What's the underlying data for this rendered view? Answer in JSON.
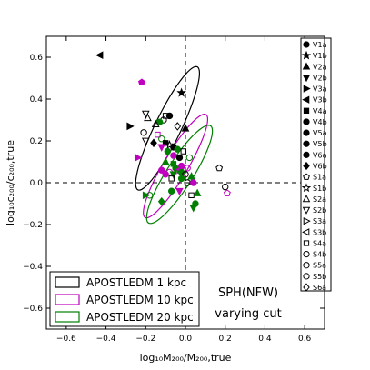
{
  "chart_data": {
    "type": "scatter",
    "xlabel": "log₁₀M₂₀₀/M₂₀₀,true",
    "ylabel": "log₁₀c₂₀₀/c₂₀₀,true",
    "xlim": [
      -0.7,
      0.7
    ],
    "ylim": [
      -0.7,
      0.7
    ],
    "xticks": [
      -0.6,
      -0.4,
      -0.2,
      0.0,
      0.2,
      0.4,
      0.6
    ],
    "yticks": [
      -0.6,
      -0.4,
      -0.2,
      0.0,
      0.2,
      0.4,
      0.6
    ],
    "xtick_labels": [
      "−0.6",
      "−0.4",
      "−0.2",
      "0.0",
      "0.2",
      "0.4",
      "0.6"
    ],
    "ytick_labels": [
      "−0.6",
      "−0.4",
      "−0.2",
      "0.0",
      "0.2",
      "0.4",
      "0.6"
    ],
    "grid": false,
    "reference_lines": {
      "x": 0.0,
      "y": 0.0,
      "style": "dashed"
    },
    "annotation": {
      "line1": "SPH(NFW)",
      "line2": "varying cut"
    },
    "colors": {
      "1kpc": "#000000",
      "10kpc": "#bf00bf",
      "20kpc": "#007f00"
    },
    "ellipses": [
      {
        "name": "APOSTLEDM 1 kpc",
        "color_key": "1kpc",
        "center": [
          -0.09,
          0.26
        ],
        "semi_major": 0.33,
        "semi_minor": 0.065,
        "angle_deg": 63
      },
      {
        "name": "APOSTLEDM 10 kpc",
        "color_key": "10kpc",
        "center": [
          -0.05,
          0.08
        ],
        "semi_major": 0.29,
        "semi_minor": 0.06,
        "angle_deg": 58
      },
      {
        "name": "APOSTLEDM 20 kpc",
        "color_key": "20kpc",
        "center": [
          -0.03,
          0.04
        ],
        "semi_major": 0.28,
        "semi_minor": 0.065,
        "angle_deg": 56
      }
    ],
    "legend_boxes": {
      "items": [
        "APOSTLEDM 1 kpc",
        "APOSTLEDM 10 kpc",
        "APOSTLEDM 20 kpc"
      ],
      "placement": "lower-left"
    },
    "marker_legend": {
      "placement": "right",
      "items": [
        {
          "label": "V1a",
          "marker": "circle",
          "filled": true
        },
        {
          "label": "V1b",
          "marker": "star",
          "filled": true
        },
        {
          "label": "V2a",
          "marker": "triangle-up",
          "filled": true
        },
        {
          "label": "V2b",
          "marker": "triangle-down",
          "filled": true
        },
        {
          "label": "V3a",
          "marker": "triangle-right",
          "filled": true
        },
        {
          "label": "V3b",
          "marker": "triangle-left",
          "filled": true
        },
        {
          "label": "V4a",
          "marker": "square",
          "filled": true
        },
        {
          "label": "V4b",
          "marker": "circle",
          "filled": true
        },
        {
          "label": "V5a",
          "marker": "circle",
          "filled": true
        },
        {
          "label": "V5b",
          "marker": "circle",
          "filled": true
        },
        {
          "label": "V6a",
          "marker": "circle",
          "filled": true
        },
        {
          "label": "V6b",
          "marker": "diamond",
          "filled": true
        },
        {
          "label": "S1a",
          "marker": "pentagon",
          "filled": false
        },
        {
          "label": "S1b",
          "marker": "star",
          "filled": false
        },
        {
          "label": "S2a",
          "marker": "triangle-up",
          "filled": false
        },
        {
          "label": "S2b",
          "marker": "triangle-down",
          "filled": false
        },
        {
          "label": "S3a",
          "marker": "triangle-right",
          "filled": false
        },
        {
          "label": "S3b",
          "marker": "triangle-left",
          "filled": false
        },
        {
          "label": "S4a",
          "marker": "square",
          "filled": false
        },
        {
          "label": "S4b",
          "marker": "circle",
          "filled": false
        },
        {
          "label": "S5a",
          "marker": "circle",
          "filled": false
        },
        {
          "label": "S5b",
          "marker": "circle",
          "filled": false
        },
        {
          "label": "S6a",
          "marker": "diamond",
          "filled": false
        }
      ]
    },
    "points": [
      {
        "x": -0.43,
        "y": 0.61,
        "marker": "triangle-left",
        "filled": true,
        "color_key": "1kpc"
      },
      {
        "x": -0.02,
        "y": 0.43,
        "marker": "star",
        "filled": true,
        "color_key": "1kpc"
      },
      {
        "x": -0.22,
        "y": 0.48,
        "marker": "pentagon",
        "filled": true,
        "color_key": "10kpc"
      },
      {
        "x": -0.2,
        "y": 0.33,
        "marker": "triangle-down",
        "filled": false,
        "color_key": "1kpc"
      },
      {
        "x": -0.19,
        "y": 0.31,
        "marker": "triangle-up",
        "filled": false,
        "color_key": "1kpc"
      },
      {
        "x": -0.1,
        "y": 0.32,
        "marker": "square",
        "filled": false,
        "color_key": "1kpc"
      },
      {
        "x": -0.11,
        "y": 0.3,
        "marker": "circle",
        "filled": false,
        "color_key": "1kpc"
      },
      {
        "x": -0.08,
        "y": 0.32,
        "marker": "circle",
        "filled": true,
        "color_key": "1kpc"
      },
      {
        "x": -0.13,
        "y": 0.29,
        "marker": "circle",
        "filled": true,
        "color_key": "20kpc"
      },
      {
        "x": -0.15,
        "y": 0.28,
        "marker": "triangle-up",
        "filled": false,
        "color_key": "1kpc"
      },
      {
        "x": 0.0,
        "y": 0.26,
        "marker": "triangle-up",
        "filled": true,
        "color_key": "1kpc"
      },
      {
        "x": -0.28,
        "y": 0.27,
        "marker": "triangle-right",
        "filled": true,
        "color_key": "1kpc"
      },
      {
        "x": -0.04,
        "y": 0.27,
        "marker": "diamond",
        "filled": false,
        "color_key": "1kpc"
      },
      {
        "x": -0.21,
        "y": 0.24,
        "marker": "circle",
        "filled": false,
        "color_key": "1kpc"
      },
      {
        "x": -0.14,
        "y": 0.23,
        "marker": "square",
        "filled": false,
        "color_key": "10kpc"
      },
      {
        "x": -0.12,
        "y": 0.21,
        "marker": "circle",
        "filled": false,
        "color_key": "20kpc"
      },
      {
        "x": -0.2,
        "y": 0.2,
        "marker": "triangle-down",
        "filled": false,
        "color_key": "1kpc"
      },
      {
        "x": -0.16,
        "y": 0.19,
        "marker": "diamond",
        "filled": true,
        "color_key": "1kpc"
      },
      {
        "x": -0.1,
        "y": 0.19,
        "marker": "square",
        "filled": true,
        "color_key": "1kpc"
      },
      {
        "x": -0.08,
        "y": 0.18,
        "marker": "star",
        "filled": false,
        "color_key": "1kpc"
      },
      {
        "x": -0.06,
        "y": 0.17,
        "marker": "circle",
        "filled": true,
        "color_key": "1kpc"
      },
      {
        "x": -0.04,
        "y": 0.16,
        "marker": "circle",
        "filled": true,
        "color_key": "20kpc"
      },
      {
        "x": -0.01,
        "y": 0.15,
        "marker": "square",
        "filled": false,
        "color_key": "1kpc"
      },
      {
        "x": -0.12,
        "y": 0.17,
        "marker": "triangle-down",
        "filled": true,
        "color_key": "10kpc"
      },
      {
        "x": -0.09,
        "y": 0.15,
        "marker": "circle",
        "filled": true,
        "color_key": "20kpc"
      },
      {
        "x": -0.06,
        "y": 0.13,
        "marker": "circle",
        "filled": true,
        "color_key": "10kpc"
      },
      {
        "x": -0.03,
        "y": 0.12,
        "marker": "circle",
        "filled": true,
        "color_key": "1kpc"
      },
      {
        "x": -0.24,
        "y": 0.12,
        "marker": "triangle-right",
        "filled": true,
        "color_key": "10kpc"
      },
      {
        "x": 0.02,
        "y": 0.12,
        "marker": "circle",
        "filled": false,
        "color_key": "20kpc"
      },
      {
        "x": -0.1,
        "y": 0.1,
        "marker": "triangle-up",
        "filled": true,
        "color_key": "20kpc"
      },
      {
        "x": -0.06,
        "y": 0.09,
        "marker": "square",
        "filled": true,
        "color_key": "20kpc"
      },
      {
        "x": -0.02,
        "y": 0.08,
        "marker": "circle",
        "filled": true,
        "color_key": "10kpc"
      },
      {
        "x": -0.05,
        "y": 0.07,
        "marker": "circle",
        "filled": true,
        "color_key": "20kpc"
      },
      {
        "x": -0.03,
        "y": 0.06,
        "marker": "star",
        "filled": true,
        "color_key": "10kpc"
      },
      {
        "x": -0.12,
        "y": 0.06,
        "marker": "circle",
        "filled": true,
        "color_key": "10kpc"
      },
      {
        "x": -0.08,
        "y": 0.05,
        "marker": "circle",
        "filled": false,
        "color_key": "10kpc"
      },
      {
        "x": -0.1,
        "y": 0.04,
        "marker": "circle",
        "filled": true,
        "color_key": "10kpc"
      },
      {
        "x": -0.06,
        "y": 0.04,
        "marker": "triangle-down",
        "filled": true,
        "color_key": "20kpc"
      },
      {
        "x": -0.02,
        "y": 0.05,
        "marker": "circle",
        "filled": true,
        "color_key": "20kpc"
      },
      {
        "x": 0.01,
        "y": 0.07,
        "marker": "circle",
        "filled": false,
        "color_key": "10kpc"
      },
      {
        "x": 0.0,
        "y": 0.04,
        "marker": "circle",
        "filled": false,
        "color_key": "1kpc"
      },
      {
        "x": -0.07,
        "y": 0.02,
        "marker": "square",
        "filled": false,
        "color_key": "1kpc"
      },
      {
        "x": -0.02,
        "y": 0.02,
        "marker": "circle",
        "filled": true,
        "color_key": "20kpc"
      },
      {
        "x": 0.03,
        "y": 0.03,
        "marker": "triangle-up",
        "filled": true,
        "color_key": "20kpc"
      },
      {
        "x": 0.01,
        "y": 0.0,
        "marker": "circle",
        "filled": false,
        "color_key": "1kpc"
      },
      {
        "x": 0.04,
        "y": 0.0,
        "marker": "circle",
        "filled": true,
        "color_key": "10kpc"
      },
      {
        "x": 0.17,
        "y": 0.07,
        "marker": "pentagon",
        "filled": false,
        "color_key": "1kpc"
      },
      {
        "x": 0.2,
        "y": -0.02,
        "marker": "circle",
        "filled": false,
        "color_key": "1kpc"
      },
      {
        "x": 0.21,
        "y": -0.05,
        "marker": "pentagon",
        "filled": false,
        "color_key": "10kpc"
      },
      {
        "x": -0.2,
        "y": -0.06,
        "marker": "triangle-right",
        "filled": true,
        "color_key": "20kpc"
      },
      {
        "x": -0.18,
        "y": -0.06,
        "marker": "circle",
        "filled": false,
        "color_key": "20kpc"
      },
      {
        "x": -0.07,
        "y": -0.04,
        "marker": "circle",
        "filled": true,
        "color_key": "20kpc"
      },
      {
        "x": -0.03,
        "y": -0.04,
        "marker": "triangle-down",
        "filled": true,
        "color_key": "10kpc"
      },
      {
        "x": 0.03,
        "y": -0.06,
        "marker": "square",
        "filled": false,
        "color_key": "1kpc"
      },
      {
        "x": 0.06,
        "y": -0.05,
        "marker": "triangle-up",
        "filled": true,
        "color_key": "20kpc"
      },
      {
        "x": -0.12,
        "y": -0.09,
        "marker": "diamond",
        "filled": true,
        "color_key": "20kpc"
      },
      {
        "x": 0.04,
        "y": -0.12,
        "marker": "triangle-down",
        "filled": true,
        "color_key": "20kpc"
      },
      {
        "x": 0.05,
        "y": -0.1,
        "marker": "circle",
        "filled": true,
        "color_key": "20kpc"
      }
    ]
  }
}
